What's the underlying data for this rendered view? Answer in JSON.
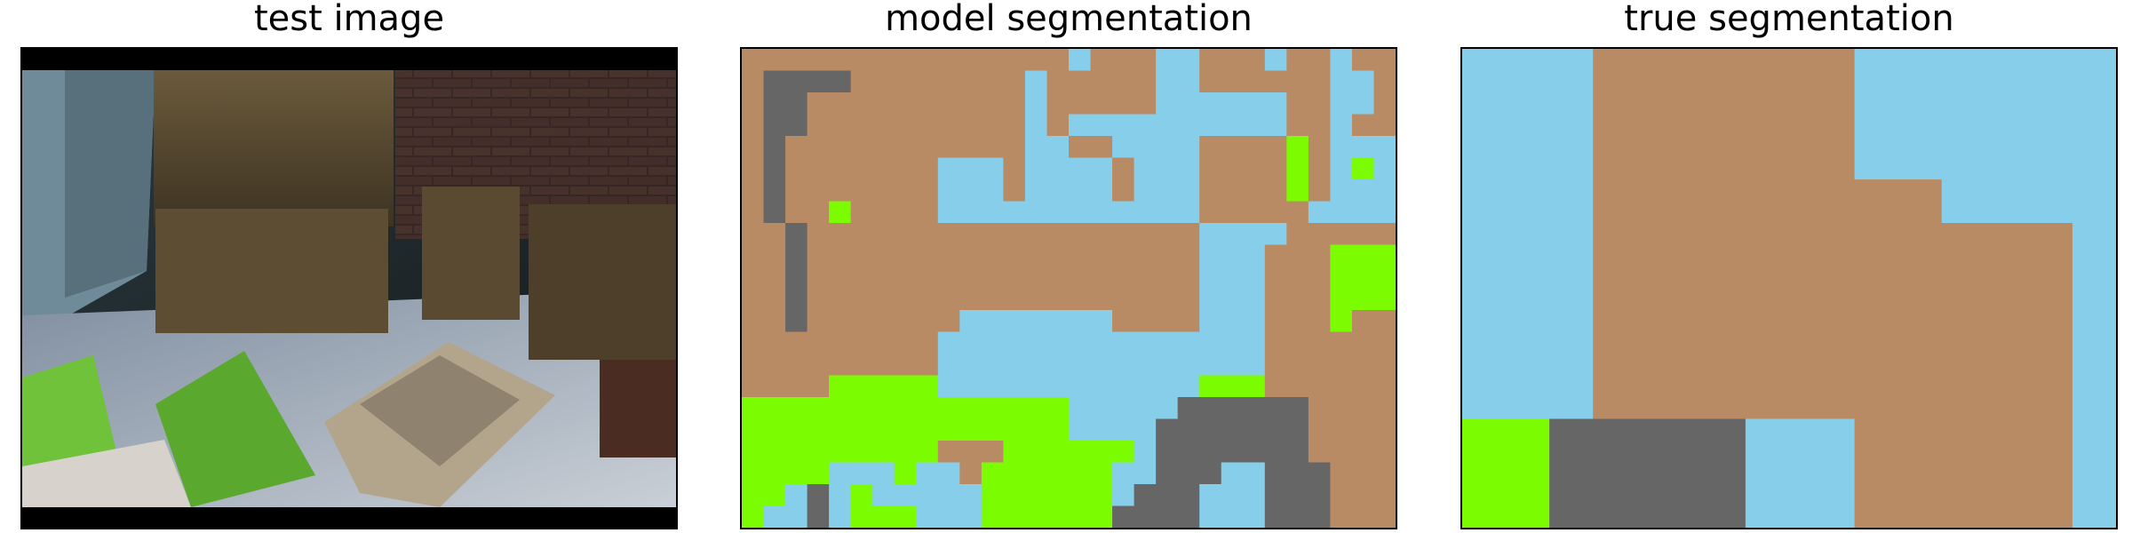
{
  "panels": [
    {
      "title": "test image"
    },
    {
      "title": "model segmentation"
    },
    {
      "title": "true segmentation"
    }
  ],
  "classes": [
    {
      "id": 0,
      "color": "#b88b65"
    },
    {
      "id": 1,
      "color": "#87ceeb"
    },
    {
      "id": 2,
      "color": "#666666"
    },
    {
      "id": 3,
      "color": "#7cfc00"
    }
  ],
  "model_segmentation": {
    "rows": 22,
    "cols": 30,
    "grid": [
      "000000000000000100011000100100",
      "022220000000010000011000000110",
      "022000000000010000011111100110",
      "022000000000010111111111100100",
      "020000000000011001111000030111",
      "020000000111011110111000030131",
      "020000000111011110111000030111",
      "020030000111111111111000001111",
      "002000000000000000000111100000",
      "002000000000000000000111000333",
      "002000000000000000000111000333",
      "002000000000000000000111000333",
      "002000000011111110000111000300",
      "000000000111111111111111000000",
      "000000000111111111111111000000",
      "000033333111111111111333000000",
      "333333333333333111112222220000",
      "333333333333333111122222220000",
      "333333333000333333122222220000",
      "333311131103333331122211222000",
      "331213111113333331222111222000",
      "311213331113333332222111222000"
    ]
  },
  "true_segmentation": {
    "rows": 22,
    "cols": 30,
    "grid": [
      "111111000000000000111111111111",
      "111111000000000000111111111111",
      "111111000000000000111111111111",
      "111111000000000000111111111111",
      "111111000000000000111111111111",
      "111111000000000000111111111111",
      "111111000000000000000011111111",
      "111111000000000000000011111111",
      "111111000000000000000000000011",
      "111111000000000000000000000011",
      "111111000000000000000000000011",
      "111111000000000000000000000011",
      "111111000000000000000000000011",
      "111111000000000000000000000011",
      "111111000000000000000000000011",
      "111111000000000000000000000011",
      "111111000000000000000000000011",
      "333322222222211111000000000011",
      "333322222222211111000000000011",
      "333322222222211111000000000011",
      "333322222222211111000000000011",
      "333322222222211111000000000011"
    ]
  }
}
